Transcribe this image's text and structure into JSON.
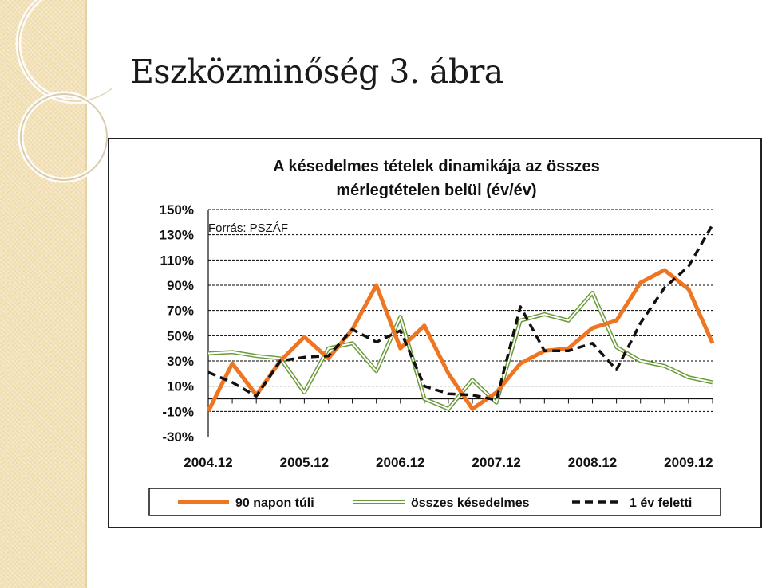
{
  "slide": {
    "title": "Eszközminőség 3. ábra"
  },
  "colors": {
    "orange": "#ee7623",
    "green": "#6a9a3a",
    "green_inner": "#ffffff",
    "black": "#111111",
    "gridline": "#000000"
  },
  "chart_data": {
    "type": "line",
    "title": "A késedelmes tételek dinamikája az összes mérlegtételen belül (év/év)",
    "title_lines": [
      "A késedelmes tételek dinamikája az összes",
      "mérlegtételen belül (év/év)"
    ],
    "annotation": "Forrás: PSZÁF",
    "ylim": [
      -30,
      150
    ],
    "y_ticks": [
      -30,
      -10,
      10,
      30,
      50,
      70,
      90,
      110,
      130,
      150
    ],
    "y_tick_labels": [
      "-30%",
      "-10%",
      "10%",
      "30%",
      "50%",
      "70%",
      "90%",
      "110%",
      "130%",
      "150%"
    ],
    "x_tick_labels": [
      "2004.12",
      "2005.12",
      "2006.12",
      "2007.12",
      "2008.12",
      "2009.12"
    ],
    "x_tick_positions": [
      0,
      4,
      8,
      12,
      16,
      20
    ],
    "n_points": 22,
    "grid": true,
    "legend_position": "bottom",
    "series": [
      {
        "name": "90 napon túli",
        "style": "orange-solid",
        "values": [
          -10,
          28,
          3,
          30,
          49,
          32,
          55,
          90,
          40,
          58,
          20,
          -8,
          5,
          28,
          38,
          40,
          56,
          62,
          92,
          102,
          87,
          44
        ]
      },
      {
        "name": "összes késedelmes",
        "style": "green-double",
        "values": [
          36,
          37,
          34,
          32,
          5,
          40,
          44,
          22,
          65,
          0,
          -8,
          15,
          -3,
          62,
          67,
          62,
          84,
          41,
          30,
          26,
          17,
          13
        ]
      },
      {
        "name": "1 év feletti",
        "style": "black-dashed",
        "values": [
          21,
          13,
          2,
          30,
          33,
          34,
          55,
          45,
          54,
          10,
          4,
          3,
          -1,
          73,
          38,
          38,
          44,
          23,
          60,
          88,
          105,
          138
        ]
      }
    ]
  }
}
